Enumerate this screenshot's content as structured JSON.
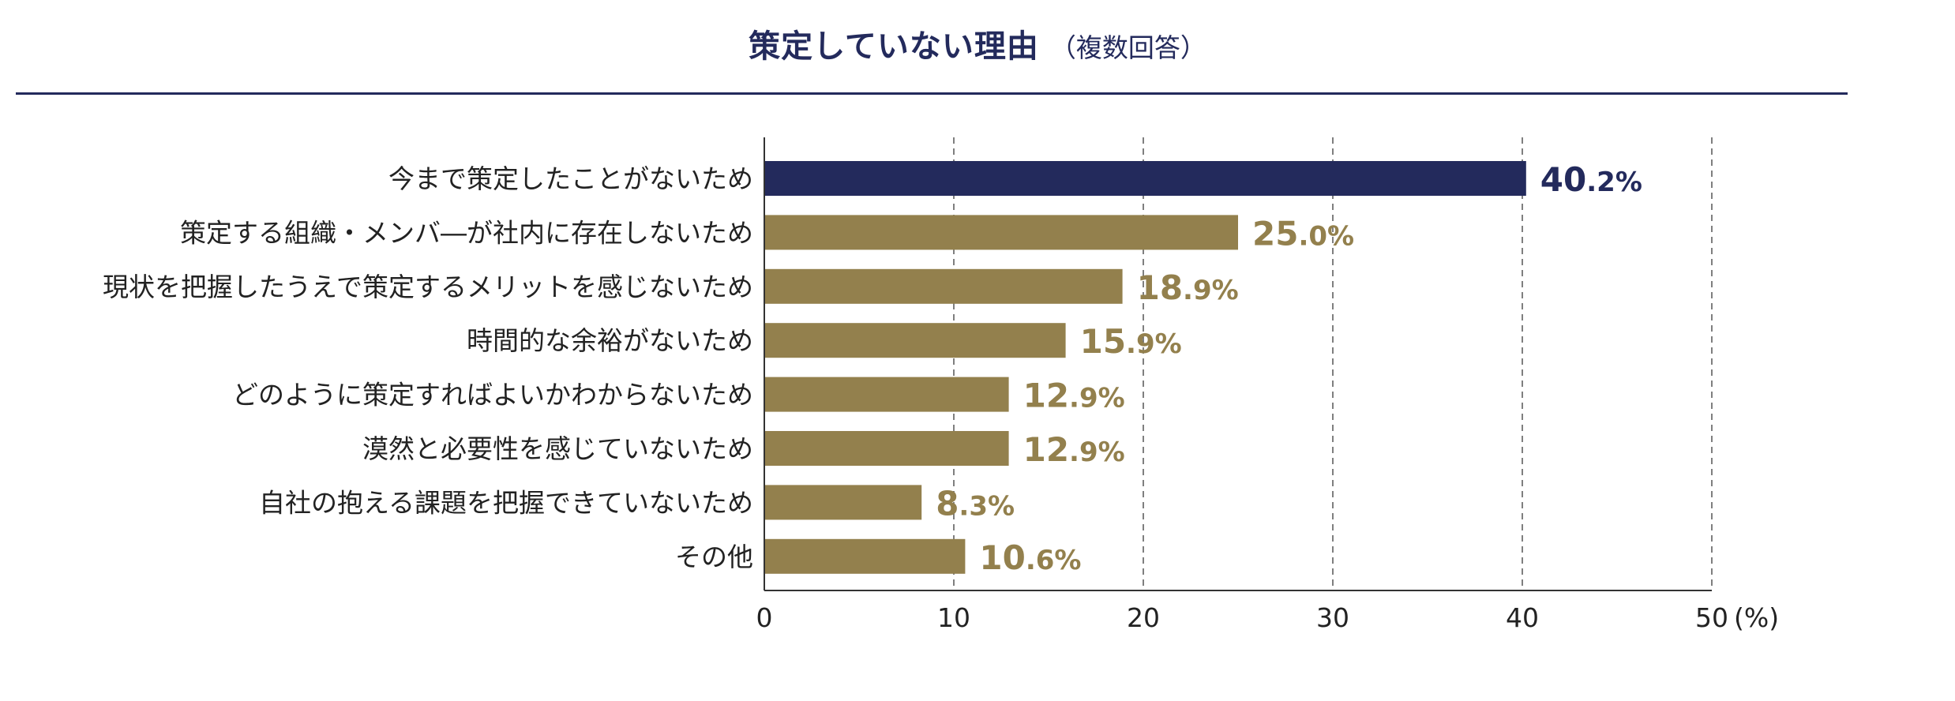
{
  "title": {
    "main": "策定していない理由",
    "sub": "（複数回答）"
  },
  "colors": {
    "highlight": "#232a5c",
    "bar": "#93804d",
    "rule": "#232a5c",
    "axis": "#333333",
    "grid": "#555555"
  },
  "chart_data": {
    "type": "bar",
    "orientation": "horizontal",
    "title": "策定していない理由",
    "subtitle": "（複数回答）",
    "categories": [
      "今まで策定したことがないため",
      "策定する組織・メンバ―が社内に存在しないため",
      "現状を把握したうえで策定するメリットを感じないため",
      "時間的な余裕がないため",
      "どのように策定すればよいかわからないため",
      "漠然と必要性を感じていないため",
      "自社の抱える課題を把握できていないため",
      "その他"
    ],
    "values": [
      40.2,
      25.0,
      18.9,
      15.9,
      12.9,
      12.9,
      8.3,
      10.6
    ],
    "value_labels": [
      {
        "int": "40",
        "dec": ".2%"
      },
      {
        "int": "25",
        "dec": ".0%"
      },
      {
        "int": "18",
        "dec": ".9%"
      },
      {
        "int": "15",
        "dec": ".9%"
      },
      {
        "int": "12",
        "dec": ".9%"
      },
      {
        "int": "12",
        "dec": ".9%"
      },
      {
        "int": "8",
        "dec": ".3%"
      },
      {
        "int": "10",
        "dec": ".6%"
      }
    ],
    "highlight_index": 0,
    "xlim": [
      0,
      50
    ],
    "xticks": [
      0,
      10,
      20,
      30,
      40,
      50
    ],
    "xunit": "(%)",
    "grid": "vertical dashed"
  }
}
